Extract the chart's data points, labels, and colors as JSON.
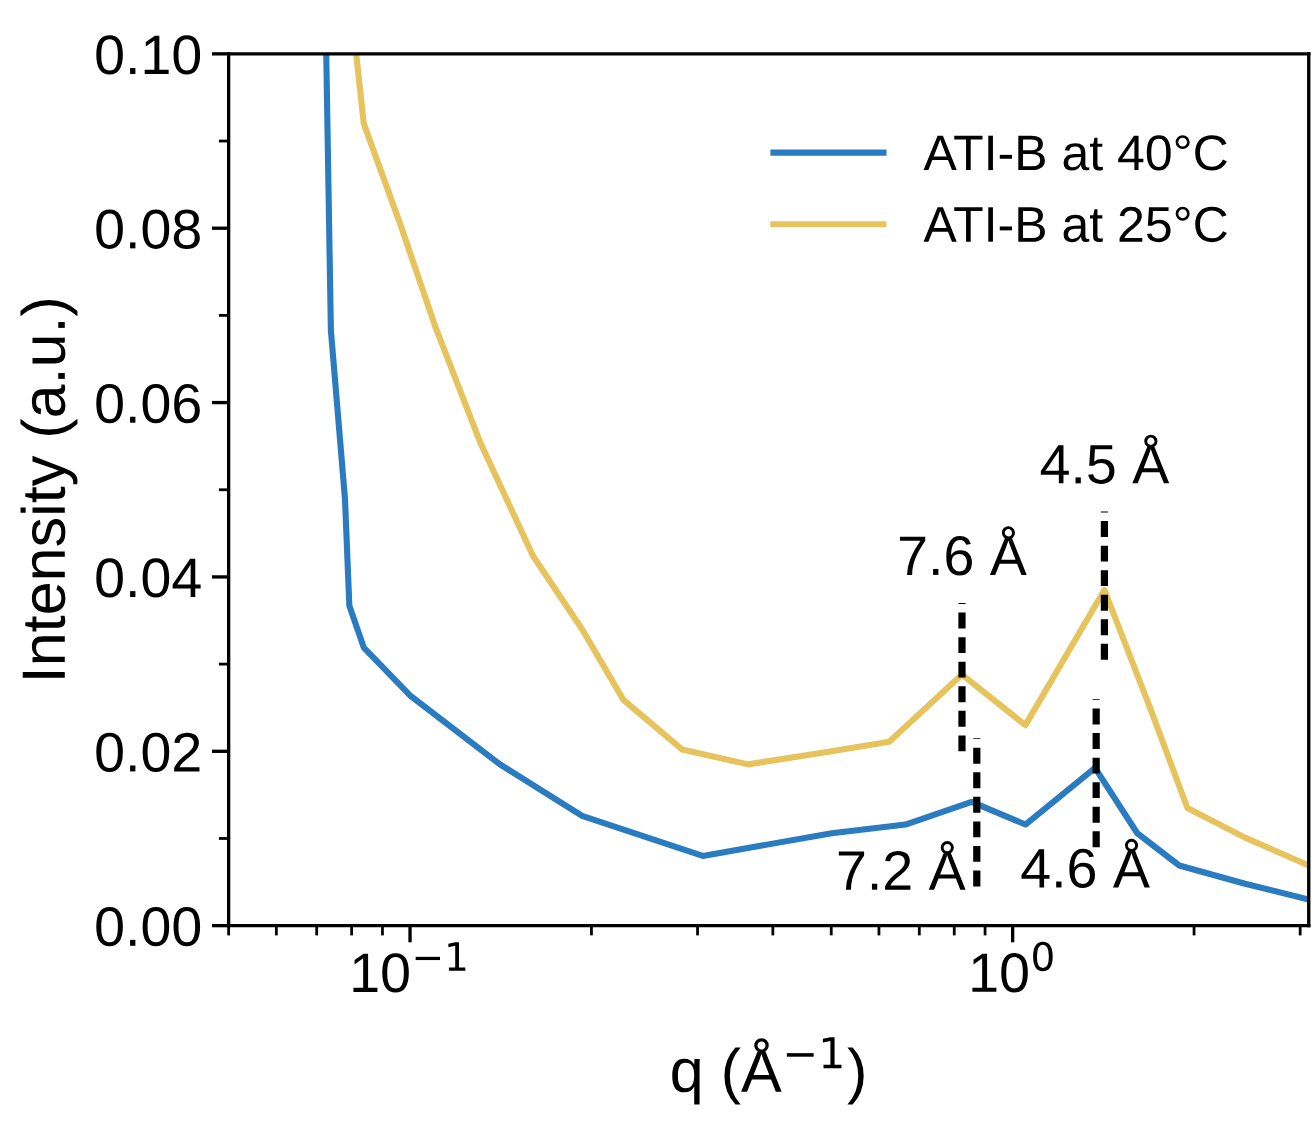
{
  "chart_data": {
    "type": "line",
    "xlabel": "q (Å$^{−1}$)",
    "ylabel": "Intensity (a.u.)",
    "log": "x",
    "xlim": [
      0.05,
      3.1
    ],
    "xticks": [
      {
        "value": 0.1,
        "label": "10$^{−1}$"
      },
      {
        "value": 1,
        "label": "10$^{0}$"
      }
    ],
    "ylim": [
      0,
      0.1
    ],
    "yticks": [
      {
        "value": 0,
        "label": "0.00"
      },
      {
        "value": 0.02,
        "label": "0.02"
      },
      {
        "value": 0.04,
        "label": "0.04"
      },
      {
        "value": 0.06,
        "label": "0.06"
      },
      {
        "value": 0.08,
        "label": "0.08"
      },
      {
        "value": 0.1,
        "label": "0.10"
      }
    ],
    "legend": "top right",
    "grid": false,
    "series": [
      {
        "name": "ATI-B at 40°C",
        "color": "#2a7bc0",
        "x": [
          0.0726,
          0.0739,
          0.078,
          0.0793,
          0.0838,
          0.1,
          0.141,
          0.193,
          0.306,
          0.501,
          0.664,
          0.855,
          1.05,
          1.37,
          1.61,
          1.89,
          2.43,
          3.1
        ],
        "values": [
          0.1,
          0.0683,
          0.0489,
          0.0367,
          0.0319,
          0.0264,
          0.0185,
          0.0126,
          0.008,
          0.0106,
          0.0116,
          0.0142,
          0.0116,
          0.0181,
          0.0106,
          0.0069,
          0.0048,
          0.003
        ]
      },
      {
        "name": "ATI-B at 25°C",
        "color": "#e6c35c",
        "x": [
          0.0814,
          0.0838,
          0.0963,
          0.11,
          0.131,
          0.16,
          0.193,
          0.226,
          0.283,
          0.364,
          0.501,
          0.624,
          0.824,
          1.05,
          1.42,
          1.69,
          1.95,
          2.43,
          3.1
        ],
        "values": [
          0.1,
          0.092,
          0.0805,
          0.0688,
          0.0553,
          0.0424,
          0.034,
          0.0259,
          0.0202,
          0.0185,
          0.02,
          0.0211,
          0.0288,
          0.023,
          0.0385,
          0.025,
          0.0135,
          0.0101,
          0.0069
        ]
      }
    ],
    "annotations": [
      {
        "text": "7.6 Å",
        "x": 0.824,
        "y": 0.0285
      },
      {
        "text": "4.5 Å",
        "x": 1.42,
        "y": 0.039
      },
      {
        "text": "7.2 Å",
        "x": 0.872,
        "y": 0.013
      },
      {
        "text": "4.6 Å",
        "x": 1.376,
        "y": 0.0175
      }
    ]
  }
}
